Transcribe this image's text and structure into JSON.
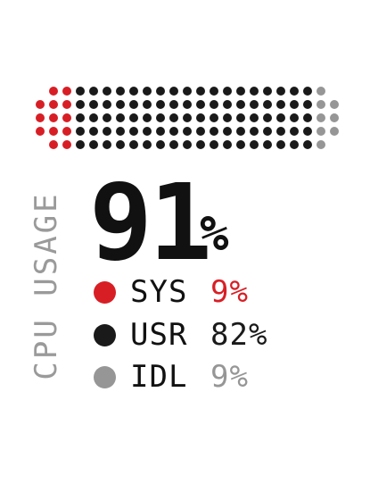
{
  "widget": {
    "title": "CPU USAGE",
    "total_value": "91",
    "total_unit": "%",
    "usage_percent": 91
  },
  "legend": [
    {
      "label": "SYS",
      "value": "9%",
      "color": "#d81e25",
      "value_color": "#d81e25"
    },
    {
      "label": "USR",
      "value": "82%",
      "color": "#1a1a1a",
      "value_color": "#1a1a1a"
    },
    {
      "label": "IDL",
      "value": "9%",
      "color": "#969696",
      "value_color": "#969696"
    }
  ],
  "colors": {
    "sys": "#d81e25",
    "usr": "#1a1a1a",
    "idle": "#969696"
  }
}
